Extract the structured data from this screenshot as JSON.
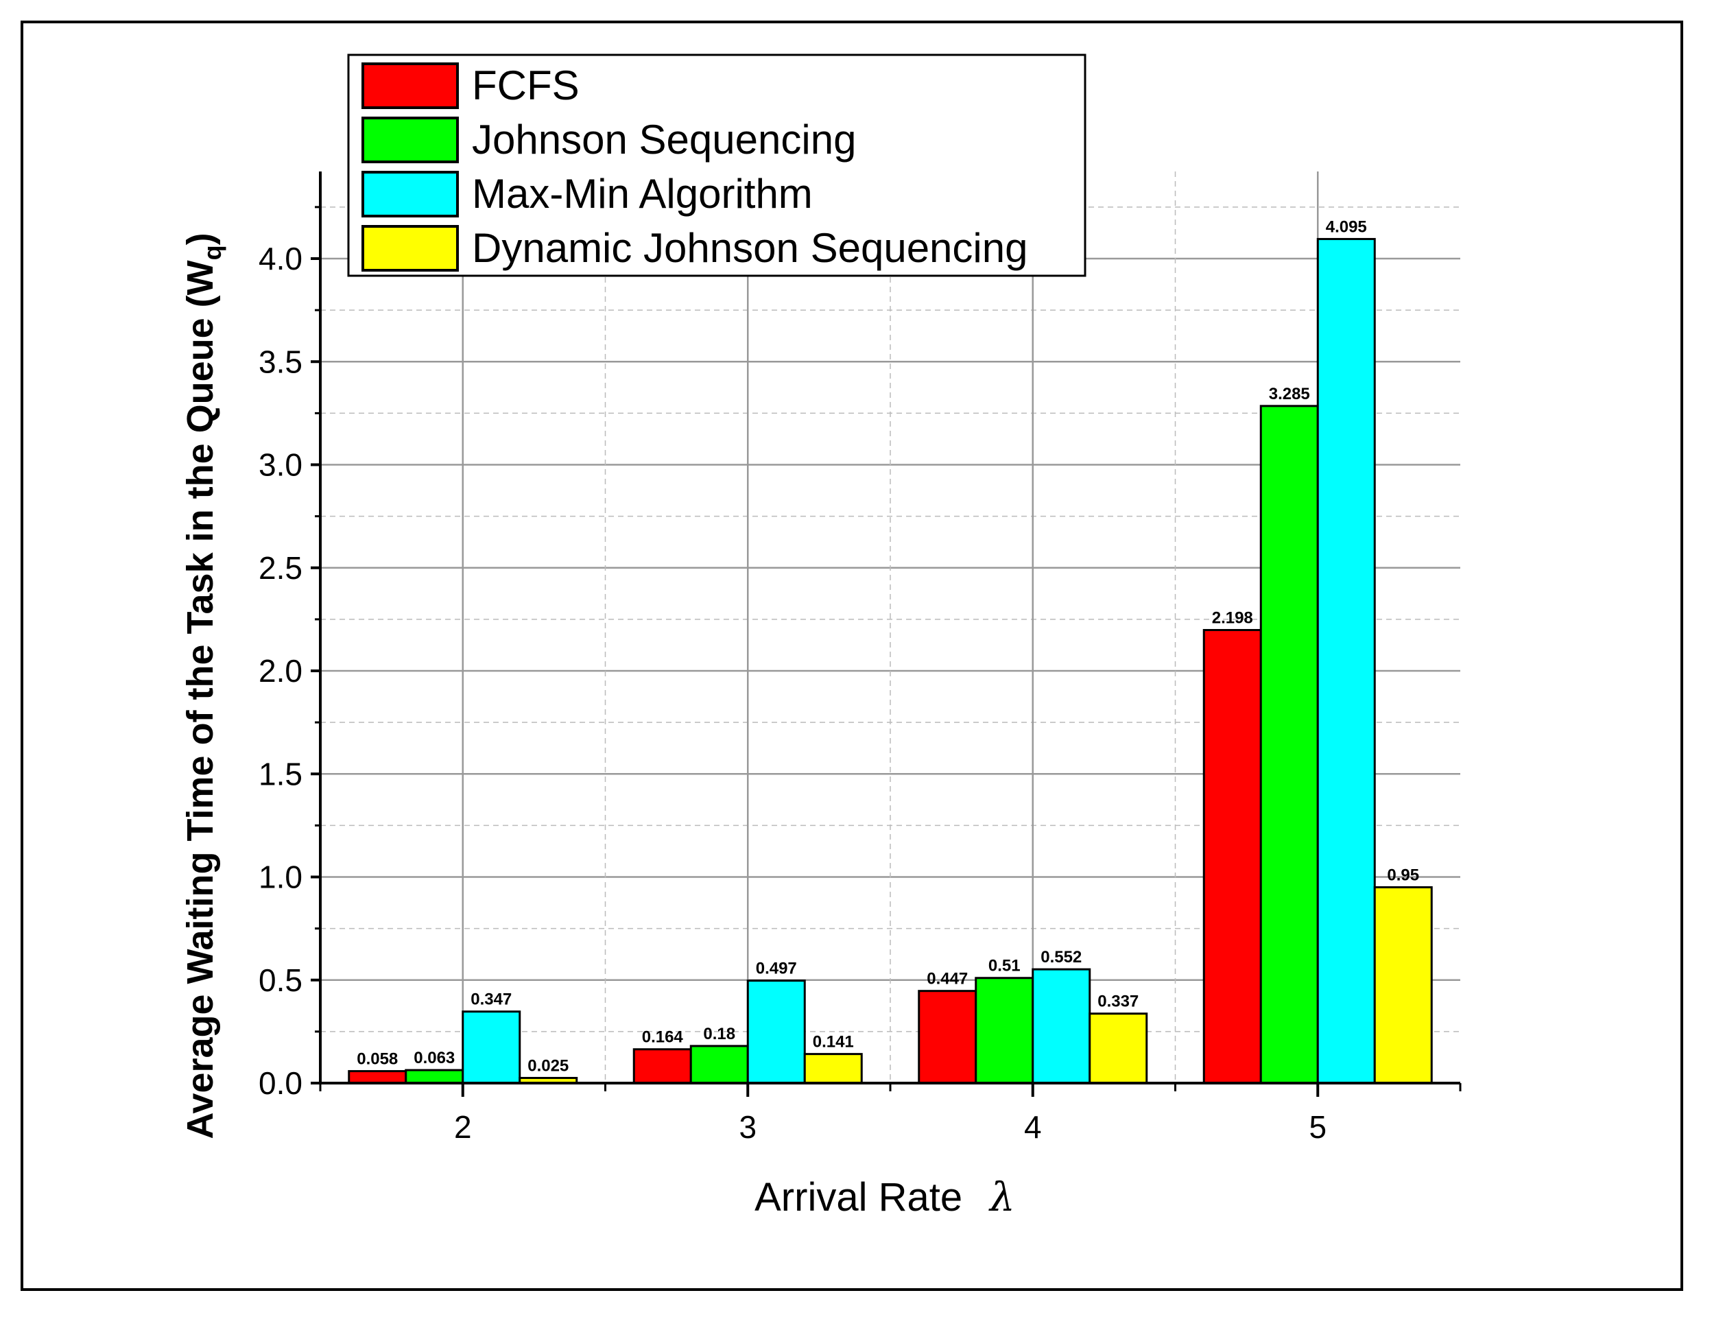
{
  "chart_data": {
    "type": "bar",
    "title": "",
    "xlabel": "Arrival Rate",
    "xlabel_symbol": "λ",
    "ylabel": "Average Waiting Time of the Task in the Queue (W",
    "ylabel_sub": "q",
    "ylabel_close": ")",
    "categories": [
      "2",
      "3",
      "4",
      "5"
    ],
    "ylim": [
      0,
      4.4
    ],
    "yticks": [
      "0.0",
      "0.5",
      "1.0",
      "1.5",
      "2.0",
      "2.5",
      "3.0",
      "3.5",
      "4.0"
    ],
    "grid": true,
    "legend_position": "top-left",
    "series": [
      {
        "name": "FCFS",
        "color": "#ff0000",
        "values": [
          0.058,
          0.164,
          0.447,
          2.198
        ],
        "labels": [
          "0.058",
          "0.164",
          "0.447",
          "2.198"
        ]
      },
      {
        "name": "Johnson Sequencing",
        "color": "#00ff00",
        "values": [
          0.063,
          0.18,
          0.51,
          3.285
        ],
        "labels": [
          "0.063",
          "0.18",
          "0.51",
          "3.285"
        ]
      },
      {
        "name": "Max-Min Algorithm",
        "color": "#00ffff",
        "values": [
          0.347,
          0.497,
          0.552,
          4.095
        ],
        "labels": [
          "0.347",
          "0.497",
          "0.552",
          "4.095"
        ]
      },
      {
        "name": "Dynamic Johnson Sequencing",
        "color": "#ffff00",
        "values": [
          0.025,
          0.141,
          0.337,
          0.95
        ],
        "labels": [
          "0.025",
          "0.141",
          "0.337",
          "0.95"
        ]
      }
    ]
  }
}
